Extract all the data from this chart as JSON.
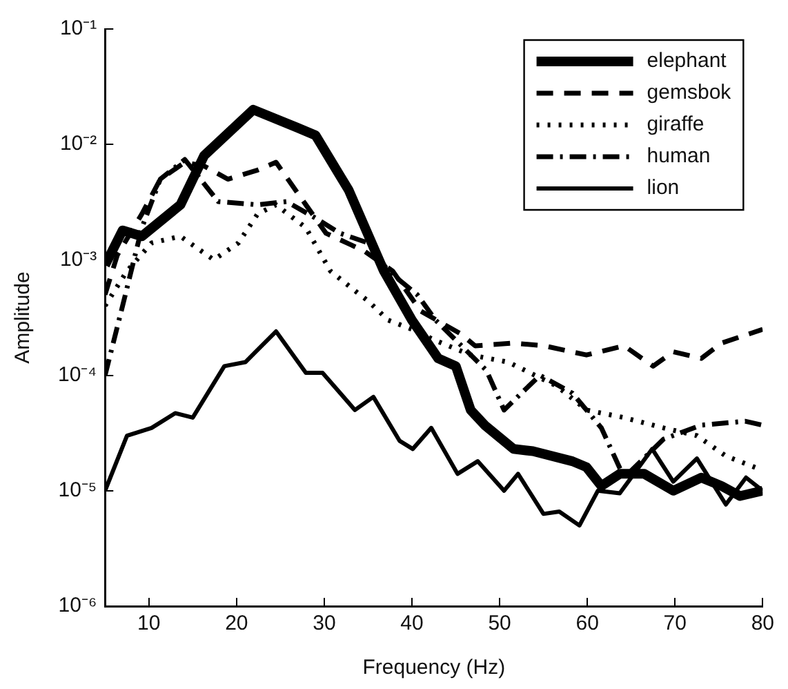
{
  "chart_data": {
    "type": "line",
    "xlabel": "Frequency (Hz)",
    "ylabel": "Amplitude",
    "log": "y",
    "grid": false,
    "legend": "top right",
    "marker": "none",
    "xlim": [
      5,
      80
    ],
    "xticks": [
      10,
      20,
      30,
      40,
      50,
      60,
      70,
      80
    ],
    "ylim": [
      1e-06,
      0.1
    ],
    "yticks": [
      {
        "value": 1e-06,
        "label": "10⁻⁶"
      },
      {
        "value": 1e-05,
        "label": "10⁻⁵"
      },
      {
        "value": 0.0001,
        "label": "10⁻⁴"
      },
      {
        "value": 0.001,
        "label": "10⁻³"
      },
      {
        "value": 0.01,
        "label": "10⁻²"
      },
      {
        "value": 0.1,
        "label": "10⁻¹"
      }
    ],
    "series": [
      {
        "name": "elephant",
        "color": "#000000",
        "line_style": "solid",
        "x": [
          5,
          7,
          9.2,
          13.6,
          16.3,
          21.9,
          26.9,
          29,
          32.8,
          36.8,
          40,
          43,
          45,
          46.7,
          48.3,
          51.6,
          53.8,
          58.3,
          59.9,
          61.6,
          63.7,
          66.5,
          69.8,
          73,
          75.3,
          77.4,
          80
        ],
        "values": [
          0.0009,
          0.0018,
          0.0016,
          0.003,
          0.008,
          0.02,
          0.014,
          0.012,
          0.004,
          0.0008,
          0.0003,
          0.00014,
          0.00012,
          5e-05,
          3.7e-05,
          2.3e-05,
          2.2e-05,
          1.8e-05,
          1.6e-05,
          1.1e-05,
          1.4e-05,
          1.4e-05,
          1e-05,
          1.3e-05,
          1.1e-05,
          9e-06,
          1e-05
        ]
      },
      {
        "name": "gemsbok",
        "color": "#000000",
        "line_style": "dashed",
        "x": [
          5,
          6.4,
          9.2,
          11.3,
          14.1,
          16.3,
          19,
          22.4,
          24.5,
          27.9,
          30.2,
          34.5,
          37.8,
          41,
          45.5,
          47.2,
          51.6,
          55.1,
          59.9,
          64.2,
          67.5,
          69.8,
          73,
          75.3,
          80
        ],
        "values": [
          0.0005,
          0.0011,
          0.0025,
          0.005,
          0.007,
          0.0065,
          0.005,
          0.006,
          0.007,
          0.003,
          0.0017,
          0.0012,
          0.0008,
          0.00036,
          0.00023,
          0.00018,
          0.00019,
          0.00018,
          0.00015,
          0.00018,
          0.00012,
          0.00016,
          0.00014,
          0.00019,
          0.00025
        ]
      },
      {
        "name": "giraffe",
        "color": "#000000",
        "line_style": "dotted",
        "x": [
          5,
          7.5,
          10.3,
          13.6,
          17.4,
          20.2,
          22.4,
          24.5,
          27.9,
          30.7,
          33.5,
          35,
          37.3,
          40,
          42.7,
          46.7,
          51,
          56.6,
          59.9,
          64.2,
          68.7,
          72.5,
          75.8,
          80
        ],
        "values": [
          0.0004,
          0.0008,
          0.0014,
          0.0016,
          0.001,
          0.0014,
          0.0025,
          0.003,
          0.0019,
          0.0008,
          0.00054,
          0.00044,
          0.0003,
          0.00025,
          0.0002,
          0.00015,
          0.00013,
          8e-05,
          5e-05,
          4.3e-05,
          3.5e-05,
          3e-05,
          2e-05,
          1.5e-05
        ]
      },
      {
        "name": "human",
        "color": "#000000",
        "line_style": "dashdot",
        "x": [
          5,
          7,
          9.2,
          11.3,
          14.1,
          17.9,
          22.4,
          25.7,
          29,
          31.8,
          35,
          37.3,
          40.6,
          42.7,
          48.5,
          50.5,
          54.6,
          58.3,
          61.6,
          64.2,
          68.7,
          73,
          78,
          80
        ],
        "values": [
          0.0001,
          0.0004,
          0.0019,
          0.005,
          0.0074,
          0.0032,
          0.003,
          0.0032,
          0.0023,
          0.0017,
          0.0014,
          0.0008,
          0.0005,
          0.0003,
          0.00011,
          5e-05,
          0.0001,
          7e-05,
          3.5e-05,
          1.3e-05,
          2.8e-05,
          3.7e-05,
          4e-05,
          3.7e-05
        ]
      },
      {
        "name": "lion",
        "color": "#000000",
        "line_style": "solid",
        "x": [
          5,
          7.5,
          10.3,
          13,
          15,
          18.6,
          21,
          24.5,
          27.9,
          29.8,
          33.5,
          35.6,
          38.6,
          40.1,
          42.2,
          45.2,
          47.5,
          50.5,
          52.1,
          55,
          56.8,
          59.1,
          61.2,
          63.7,
          67.4,
          69.8,
          72.5,
          75.8,
          78.1,
          80
        ],
        "values": [
          1e-05,
          3e-05,
          3.5e-05,
          4.7e-05,
          4.3e-05,
          0.00012,
          0.00013,
          0.00024,
          0.000105,
          0.000105,
          5e-05,
          6.5e-05,
          2.7e-05,
          2.3e-05,
          3.5e-05,
          1.4e-05,
          1.8e-05,
          1e-05,
          1.4e-05,
          6.3e-06,
          6.6e-06,
          5e-06,
          1e-05,
          9.5e-06,
          2.3e-05,
          1.2e-05,
          1.9e-05,
          7.6e-06,
          1.3e-05,
          1e-05
        ]
      }
    ]
  }
}
